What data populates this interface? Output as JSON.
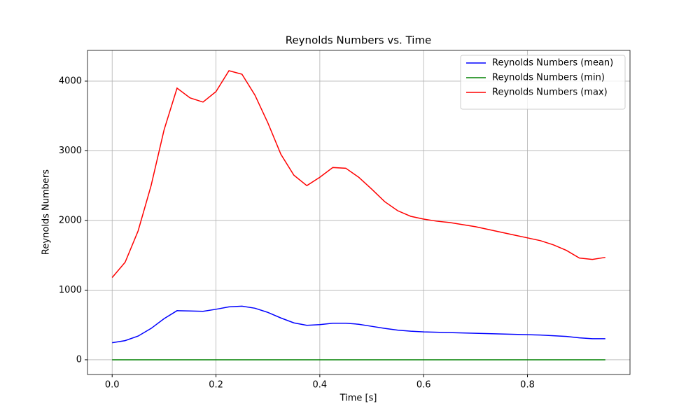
{
  "chart_data": {
    "type": "line",
    "title": "Reynolds Numbers vs. Time",
    "x_label": "Time [s]",
    "y_label": "Reynolds Numbers",
    "x": [
      0,
      0.025,
      0.05,
      0.075,
      0.1,
      0.125,
      0.15,
      0.175,
      0.2,
      0.225,
      0.25,
      0.275,
      0.3,
      0.325,
      0.35,
      0.375,
      0.4,
      0.425,
      0.45,
      0.475,
      0.5,
      0.525,
      0.55,
      0.575,
      0.6,
      0.625,
      0.65,
      0.675,
      0.7,
      0.725,
      0.75,
      0.775,
      0.8,
      0.825,
      0.85,
      0.875,
      0.9,
      0.925,
      0.95
    ],
    "series": [
      {
        "name": "Reynolds Numbers (mean)",
        "color": "#0000ff",
        "values": [
          245,
          275,
          340,
          450,
          590,
          705,
          700,
          695,
          725,
          760,
          770,
          740,
          680,
          600,
          530,
          495,
          505,
          525,
          525,
          510,
          480,
          450,
          425,
          410,
          400,
          395,
          390,
          385,
          380,
          375,
          370,
          365,
          360,
          355,
          345,
          335,
          315,
          302,
          302
        ]
      },
      {
        "name": "Reynolds Numbers (min)",
        "color": "#008000",
        "values": [
          0,
          0,
          0,
          0,
          0,
          0,
          0,
          0,
          0,
          0,
          0,
          0,
          0,
          0,
          0,
          0,
          0,
          0,
          0,
          0,
          0,
          0,
          0,
          0,
          0,
          0,
          0,
          0,
          0,
          0,
          0,
          0,
          0,
          0,
          0,
          0,
          0,
          0,
          0
        ]
      },
      {
        "name": "Reynolds Numbers (max)",
        "color": "#ff0000",
        "values": [
          1180,
          1400,
          1850,
          2500,
          3300,
          3900,
          3760,
          3700,
          3850,
          4150,
          4100,
          3800,
          3400,
          2950,
          2650,
          2500,
          2620,
          2760,
          2750,
          2620,
          2450,
          2270,
          2140,
          2060,
          2020,
          1990,
          1970,
          1940,
          1910,
          1870,
          1830,
          1790,
          1750,
          1710,
          1650,
          1570,
          1460,
          1440,
          1470
        ]
      }
    ],
    "xlim": [
      -0.0475,
      0.9975
    ],
    "ylim": [
      -211.5,
      4441.5
    ],
    "xticks": [
      {
        "value": 0,
        "label": "0.0"
      },
      {
        "value": 0.2,
        "label": "0.2"
      },
      {
        "value": 0.4,
        "label": "0.4"
      },
      {
        "value": 0.6,
        "label": "0.6"
      },
      {
        "value": 0.8,
        "label": "0.8"
      }
    ],
    "yticks": [
      0,
      1000,
      2000,
      3000,
      4000
    ],
    "grid": true,
    "legend": "upper right"
  }
}
